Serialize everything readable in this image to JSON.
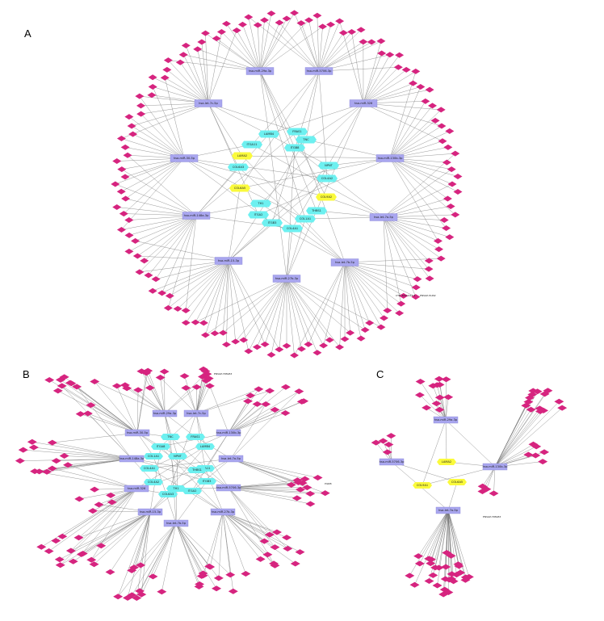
{
  "panels": [
    {
      "label": "A",
      "mirnas": [
        "hsa-miR-29a-3p",
        "hsa-miR-5706-3p",
        "hsa-let-7c-5p",
        "hsa-miR-326",
        "hsa-miR-30-5p",
        "hsa-miR-130b-3p",
        "hsa-miR-148a-3p",
        "hsa-let-7a-5p",
        "hsa-miR-15-3p",
        "hsa-let-7b-5p",
        "hsa-miR-27b-3p"
      ],
      "genes_cyan": [
        "LAMB4",
        "FRAS1",
        "TNC",
        "ITGA11",
        "ITGB8",
        "COL6A3",
        "NPNT",
        "COL4A2",
        "THBS1",
        "TH1",
        "ITGA2",
        "ITGB3",
        "COL1A1",
        "COL4A1"
      ],
      "genes_yellow": [
        "LAMA2",
        "COL6A5",
        "COL9A2"
      ],
      "peripheral_count": 140,
      "side_labels": [
        "CTD-3231O23.4",
        "ENSGP-PLIN2"
      ]
    },
    {
      "label": "B",
      "mirnas": [
        "hsa-miR-29a-3p",
        "hsa-let-7c-5p",
        "hsa-miR-30-5p",
        "hsa-miR-130b-3p",
        "hsa-miR-148a-3p",
        "hsa-let-7a-5p",
        "hsa-miR-326",
        "hsa-miR-5706-3p",
        "hsa-miR-15-3p",
        "hsa-let-7b-5p",
        "hsa-miR-27b-3p"
      ],
      "genes_cyan": [
        "TNC",
        "FRAS1",
        "ITGA8",
        "LAMB4",
        "COL1A1",
        "NPNT",
        "COL4A1",
        "ITGA11",
        "COL4A2",
        "ITGB3",
        "TH1",
        "ITGA2",
        "COL6A3",
        "THBS1"
      ],
      "peripheral_count": 120,
      "side_labels": [
        "ENSGP-HMGB3",
        "PILRB"
      ]
    },
    {
      "label": "C",
      "mirnas": [
        "hsa-miR-29a-3p",
        "hsa-miR-5706-3p",
        "hsa-miR-130b-3p",
        "hsa-let-7a-5p"
      ],
      "genes_yellow": [
        "LAMA2",
        "COL6A5",
        "COL9A1"
      ],
      "peripheral_count": 70,
      "side_labels": [
        "ENSGP-HMGB3"
      ]
    }
  ],
  "colors": {
    "mirna": "#a9a6ef",
    "gene_cyan": "#6df0f0",
    "gene_yellow": "#fafa3c",
    "peripheral": "#d6247f",
    "edge": "#777777"
  }
}
